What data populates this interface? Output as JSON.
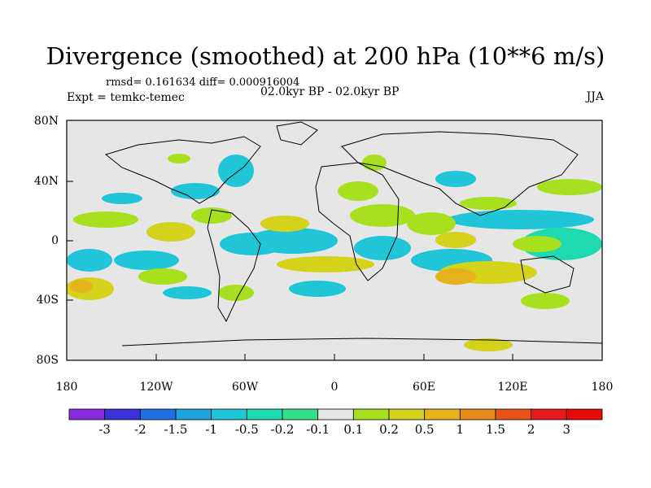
{
  "map": {
    "title": "Divergence (smoothed) at 200 hPa (10**6 m/s)",
    "stats": "rmsd= 0.161634 diff= 0.000916004",
    "experiment": "Expt = temkc-temec",
    "period": "02.0kyr BP - 02.0kyr BP",
    "season": "JJA",
    "lat_labels": [
      "80N",
      "40N",
      "0",
      "40S",
      "80S"
    ],
    "lon_labels": [
      "180",
      "120W",
      "60W",
      "0",
      "60E",
      "120E",
      "180"
    ]
  },
  "colorbar": {
    "labels": [
      "-3",
      "-2",
      "-1.5",
      "-1",
      "-0.5",
      "-0.2",
      "-0.1",
      "0.1",
      "0.2",
      "0.5",
      "1",
      "1.5",
      "2",
      "3"
    ],
    "colors": [
      "#8a2be2",
      "#3b32d9",
      "#1e6fe0",
      "#1fa4e0",
      "#20c6d8",
      "#1fd9b0",
      "#35e08a",
      "#e6e6e6",
      "#a6e01e",
      "#d4d21a",
      "#e6b21a",
      "#e68a1a",
      "#e6541a",
      "#e61a1a",
      "#e60a0a"
    ]
  },
  "colors": {
    "background": "#e6e6e6",
    "neg_light": "#20c6d8",
    "neg_mid": "#1fd9b0",
    "pos_light": "#a6e01e",
    "pos_mid": "#d4d21a",
    "pos_strong": "#e6b21a"
  }
}
